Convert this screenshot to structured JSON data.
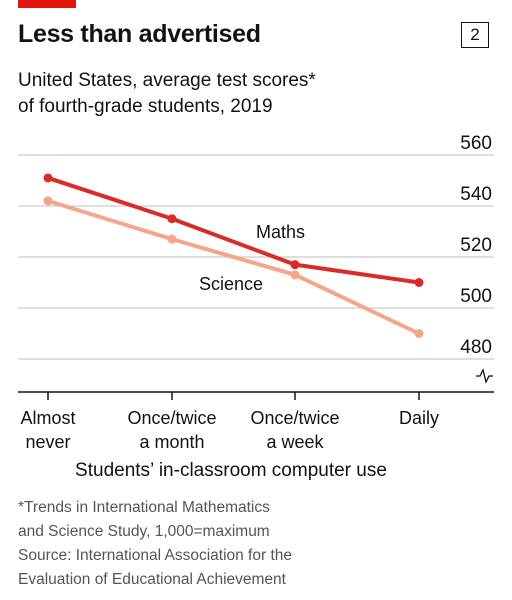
{
  "header": {
    "title": "Less than advertised",
    "chart_number": "2",
    "subtitle_line1": "United States, average test scores*",
    "subtitle_line2": "of fourth-grade students, 2019"
  },
  "colors": {
    "accent": "#e3120b",
    "maths": "#db2b27",
    "science": "#f4a58a",
    "grid": "#bfbfbf",
    "axis": "#121212"
  },
  "chart_data": {
    "type": "line",
    "title": "Less than advertised",
    "subtitle": "United States, average test scores* of fourth-grade students, 2019",
    "xlabel": "Students’ in-classroom computer use",
    "ylabel": "",
    "categories": [
      [
        "Almost",
        "never"
      ],
      [
        "Once/twice",
        "a month"
      ],
      [
        "Once/twice",
        "a week"
      ],
      [
        "Daily"
      ]
    ],
    "series": [
      {
        "name": "Maths",
        "values": [
          551,
          535,
          517,
          510
        ]
      },
      {
        "name": "Science",
        "values": [
          542,
          527,
          513,
          490
        ]
      }
    ],
    "ylim": [
      480,
      560
    ],
    "yticks": [
      480,
      500,
      520,
      540,
      560
    ],
    "grid": true,
    "y_axis_side": "right",
    "y_axis_break": true
  },
  "footnote": {
    "line1": "*Trends in International Mathematics",
    "line2": "and Science Study, 1,000=maximum",
    "line3": "Source: International Association for the",
    "line4": "Evaluation of Educational Achievement"
  }
}
